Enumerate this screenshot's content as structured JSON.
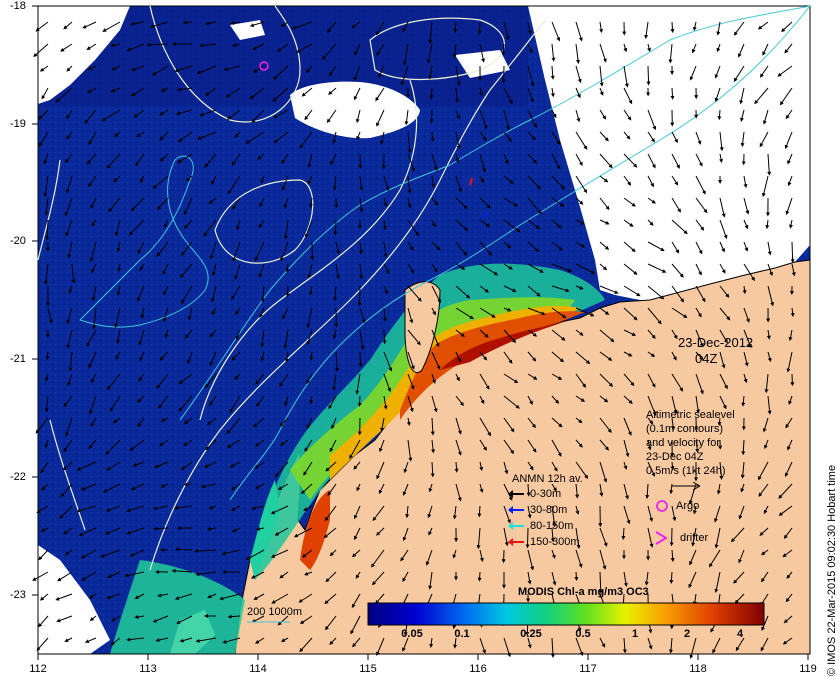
{
  "map": {
    "x_ticks": [
      "112",
      "113",
      "114",
      "115",
      "116",
      "117",
      "118",
      "119"
    ],
    "y_ticks": [
      "-18",
      "-19",
      "-20",
      "-21",
      "-22",
      "-23"
    ],
    "date_label": "23-Dec-2012",
    "time_label": "04Z",
    "colors": {
      "ocean_deep": "#0b1f8f",
      "land": "#f7c9a1",
      "cloud": "#ffffff",
      "contour_white": "#e8f0d0",
      "isobath_cyan": "#41c8d8"
    }
  },
  "altimetry": {
    "line1": "Altimetric sealevel",
    "line2": "(0.1m contours)",
    "line3": "and velocity for",
    "line4": "23-Dec 04Z",
    "line5": "0.5m/s (1kt 24h)"
  },
  "anmn": {
    "title": "ANMN 12h av.",
    "items": [
      {
        "label": "0-30m",
        "color": "#000000"
      },
      {
        "label": "30-80m",
        "color": "#0022ee"
      },
      {
        "label": "80-150m",
        "color": "#22dddd"
      },
      {
        "label": "150-300m",
        "color": "#ee1111"
      }
    ]
  },
  "markers": {
    "argo": "Argo",
    "drifter": "drifter",
    "argo_color": "#ee22ee"
  },
  "isobath_label": "200  1000m",
  "colorbar": {
    "title": "MODIS Chl-a mg/m3 OC3",
    "labels": [
      "0.05",
      "0.1",
      "0.25",
      "0.5",
      "1",
      "2",
      "4"
    ]
  },
  "credit": "© IMOS 22-Mar-2015 09:02:30 Hobart time"
}
